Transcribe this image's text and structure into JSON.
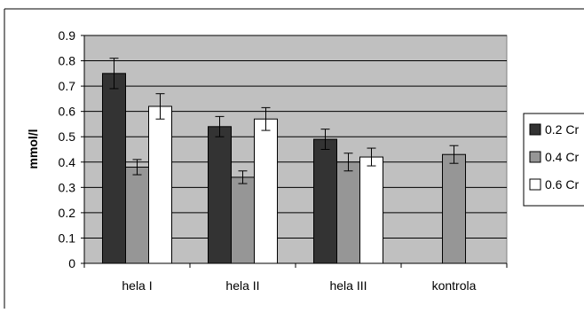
{
  "chart_data": {
    "type": "bar",
    "title": "",
    "xlabel": "",
    "ylabel": "mmol/l",
    "ylim": [
      0,
      0.9
    ],
    "yticks": [
      "0",
      "0.1",
      "0.2",
      "0.3",
      "0.4",
      "0.5",
      "0.6",
      "0.7",
      "0.8",
      "0.9"
    ],
    "categories": [
      "hela I",
      "hela II",
      "hela III",
      "kontrola"
    ],
    "series": [
      {
        "name": "0.2 Cr",
        "values": [
          0.75,
          0.54,
          0.49,
          null
        ],
        "errors": [
          0.06,
          0.04,
          0.04,
          null
        ]
      },
      {
        "name": "0.4 Cr",
        "values": [
          0.38,
          0.34,
          0.4,
          0.43
        ],
        "errors": [
          0.03,
          0.025,
          0.035,
          0.035
        ]
      },
      {
        "name": "0.6 Cr",
        "values": [
          0.62,
          0.57,
          0.42,
          null
        ],
        "errors": [
          0.05,
          0.045,
          0.035,
          null
        ]
      }
    ],
    "legend_position": "right",
    "grid": true,
    "colors": {
      "plot_background": "#c0c0c0",
      "series": [
        "#333333",
        "#969696",
        "#ffffff"
      ],
      "bar_stroke": "#000000",
      "gridline": "#000000"
    }
  }
}
